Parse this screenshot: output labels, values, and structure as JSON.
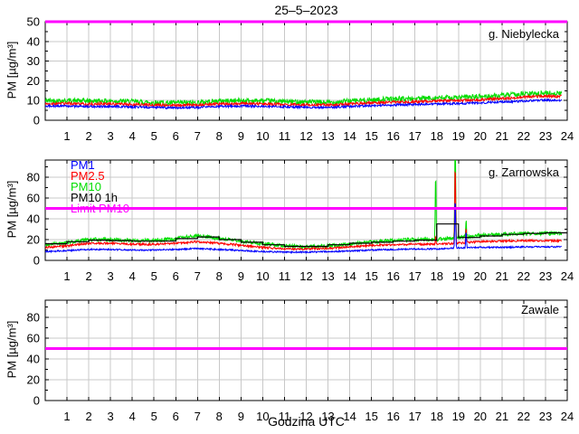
{
  "title": "25–5–2023",
  "xlabel": "Godzina UTC",
  "ylabel": "PM [µg/m³]",
  "colors": {
    "limit": "#FF00FF",
    "grid": "#C8C8C8",
    "frame": "#000000"
  },
  "legend": {
    "items": [
      {
        "label": "PM1",
        "color": "#0000FF"
      },
      {
        "label": "PM2.5",
        "color": "#FF0000"
      },
      {
        "label": "PM10",
        "color": "#00DD00"
      },
      {
        "label": "PM10 1h",
        "color": "#000000"
      },
      {
        "label": "Limit PM10",
        "color": "#FF00FF"
      }
    ]
  },
  "chart_data": [
    {
      "type": "line",
      "station": "g. Niebylecka",
      "xlim": [
        0,
        24
      ],
      "xticks": [
        1,
        2,
        3,
        4,
        5,
        6,
        7,
        8,
        9,
        10,
        11,
        12,
        13,
        14,
        15,
        16,
        17,
        18,
        19,
        20,
        21,
        22,
        23,
        24
      ],
      "ylim": [
        0,
        50
      ],
      "yticks": [
        0,
        10,
        20,
        30,
        40,
        50
      ],
      "yticks_minor": [
        5,
        15,
        25,
        35,
        45
      ],
      "limit_pm10": 50,
      "x_hours": [
        0,
        1,
        2,
        3,
        4,
        5,
        6,
        7,
        8,
        9,
        10,
        11,
        12,
        13,
        14,
        15,
        16,
        17,
        18,
        19,
        20,
        21,
        22,
        23,
        24
      ],
      "series": [
        {
          "name": "PM10",
          "color": "#00DD00",
          "noise": 1.3,
          "hourly": [
            10,
            10,
            9.8,
            9.8,
            9.5,
            9,
            8.8,
            9,
            9.8,
            10,
            9.8,
            9.5,
            9.3,
            9,
            9.8,
            10.3,
            10.8,
            11,
            11.3,
            11.5,
            12,
            12.5,
            13.3,
            13.8,
            13.5
          ]
        },
        {
          "name": "PM2.5",
          "color": "#FF0000",
          "noise": 0.7,
          "hourly": [
            8.5,
            8.5,
            8.3,
            8.3,
            8,
            7.8,
            7.5,
            7.8,
            8.3,
            8.5,
            8.3,
            8,
            7.9,
            7.8,
            8.3,
            8.8,
            9.2,
            9.4,
            9.8,
            10,
            10.4,
            11,
            11.8,
            12.3,
            12
          ]
        },
        {
          "name": "PM1",
          "color": "#0000FF",
          "noise": 0.55,
          "hourly": [
            7.2,
            7.2,
            7,
            7,
            6.8,
            6.5,
            6.3,
            6.5,
            7,
            7.2,
            7,
            6.8,
            6.6,
            6.5,
            7,
            7.4,
            7.8,
            8,
            8.3,
            8.5,
            8.8,
            9.3,
            9.8,
            10.2,
            10
          ]
        }
      ]
    },
    {
      "type": "line",
      "station": "g. Zarnowska",
      "xlim": [
        0,
        24
      ],
      "xticks": [
        1,
        2,
        3,
        4,
        5,
        6,
        7,
        8,
        9,
        10,
        11,
        12,
        13,
        14,
        15,
        16,
        17,
        18,
        19,
        20,
        21,
        22,
        23,
        24
      ],
      "ylim": [
        0,
        96.5
      ],
      "yticks": [
        0,
        20,
        40,
        60,
        80
      ],
      "yticks_minor": [
        10,
        30,
        50,
        70,
        90
      ],
      "limit_pm10": 50,
      "x_hours": [
        0,
        1,
        2,
        3,
        4,
        5,
        6,
        7,
        8,
        9,
        10,
        11,
        12,
        13,
        14,
        15,
        16,
        17,
        18,
        19,
        20,
        21,
        22,
        23,
        24
      ],
      "series": [
        {
          "name": "PM10",
          "color": "#00DD00",
          "noise": 1.8,
          "hourly": [
            15,
            17,
            20,
            20,
            19,
            19,
            21,
            24,
            21,
            18.5,
            16,
            14,
            13,
            14,
            16,
            18,
            19,
            20,
            20,
            22,
            24,
            25,
            26,
            26,
            26
          ],
          "spikes": [
            {
              "x": 17.95,
              "sigma": 0.025,
              "amp": 66
            },
            {
              "x": 18.85,
              "sigma": 0.03,
              "amp": 100
            },
            {
              "x": 19.35,
              "sigma": 0.025,
              "amp": 16
            }
          ]
        },
        {
          "name": "PM2.5",
          "color": "#FF0000",
          "noise": 1.0,
          "hourly": [
            12.5,
            14,
            16.5,
            16.5,
            15.5,
            15.5,
            16.5,
            18,
            16.5,
            14.5,
            12.5,
            11,
            11,
            11.5,
            13,
            14.5,
            15,
            15.5,
            15.5,
            16.5,
            18,
            18.5,
            19,
            19,
            19
          ],
          "spikes": [
            {
              "x": 17.95,
              "sigma": 0.02,
              "amp": 9
            },
            {
              "x": 18.85,
              "sigma": 0.03,
              "amp": 76
            },
            {
              "x": 19.35,
              "sigma": 0.025,
              "amp": 15
            }
          ]
        },
        {
          "name": "PM1",
          "color": "#0000FF",
          "noise": 0.7,
          "hourly": [
            8.5,
            9.5,
            10.5,
            10.5,
            10,
            10,
            10.5,
            11.5,
            10.5,
            9.5,
            8.5,
            8,
            8,
            8.5,
            9,
            10,
            10.5,
            11,
            11,
            12,
            12.5,
            12.5,
            13,
            13,
            13
          ],
          "spikes": [
            {
              "x": 18.85,
              "sigma": 0.03,
              "amp": 47
            },
            {
              "x": 19.35,
              "sigma": 0.025,
              "amp": 16
            }
          ]
        }
      ],
      "hourly_mean": {
        "name": "PM10 1h",
        "color": "#000000",
        "values": [
          16,
          18,
          19.5,
          19,
          18.5,
          18.5,
          21,
          22.5,
          20,
          17.5,
          15,
          13.5,
          13.5,
          15,
          16.5,
          17.5,
          18.5,
          19.5,
          35,
          22,
          23.5,
          25,
          26,
          26.5
        ]
      }
    },
    {
      "type": "line",
      "station": "Zawale",
      "xlim": [
        0,
        24
      ],
      "xticks": [
        1,
        2,
        3,
        4,
        5,
        6,
        7,
        8,
        9,
        10,
        11,
        12,
        13,
        14,
        15,
        16,
        17,
        18,
        19,
        20,
        21,
        22,
        23,
        24
      ],
      "ylim": [
        0,
        96.5
      ],
      "yticks": [
        0,
        20,
        40,
        60,
        80
      ],
      "yticks_minor": [
        10,
        30,
        50,
        70,
        90
      ],
      "limit_pm10": 50,
      "series": []
    }
  ]
}
